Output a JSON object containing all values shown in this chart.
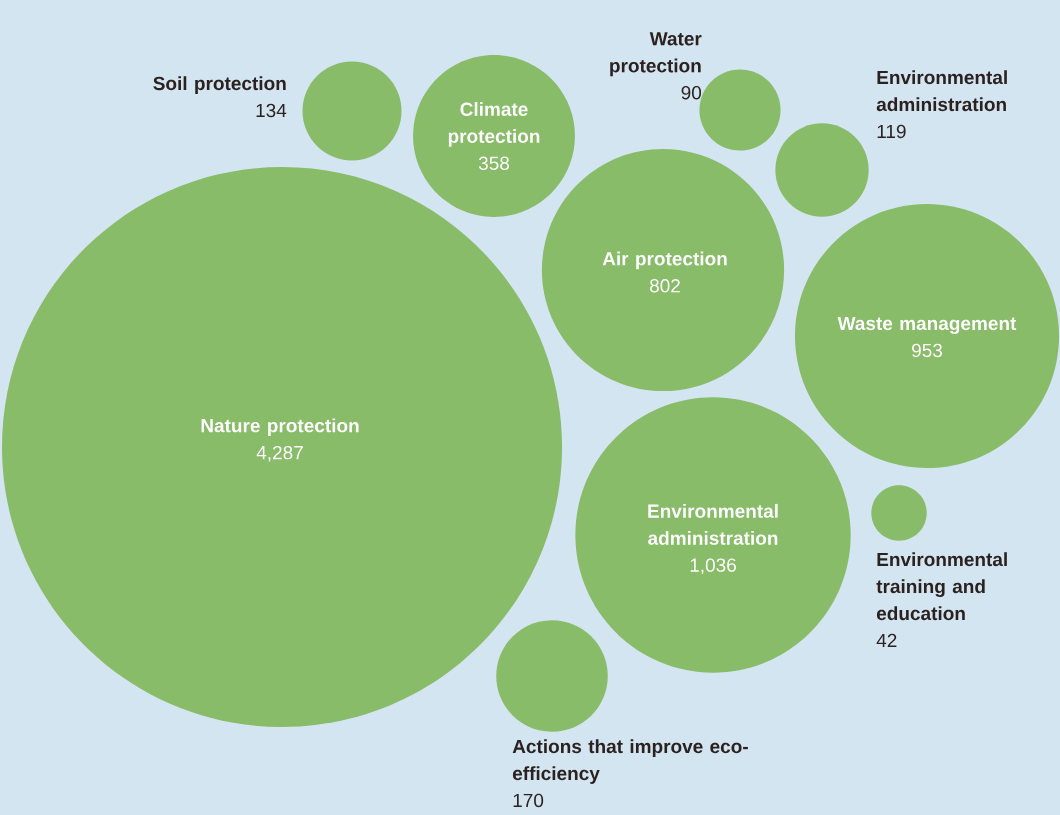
{
  "chart_data": {
    "type": "other",
    "categories": [
      "Soil protection",
      "Climate protection",
      "Water protection",
      "Environmental administration",
      "Air protection",
      "Waste management",
      "Nature protection",
      "Environmental administration",
      "Environmental training and education",
      "Actions that improve eco-efficiency"
    ],
    "values": [
      134,
      358,
      90,
      119,
      802,
      953,
      4287,
      1036,
      42,
      170
    ],
    "value_labels": [
      "134",
      "358",
      "90",
      "119",
      "802",
      "953",
      "4,287",
      "1,036",
      "42",
      "170"
    ],
    "color": "#88bc68"
  }
}
